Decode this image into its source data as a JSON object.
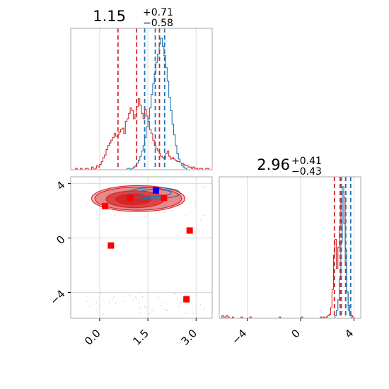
{
  "chart_data": [
    {
      "panel": "marginal-1",
      "type": "histogram",
      "title": {
        "value": "1.15",
        "upper": "+0.71",
        "lower": "−0.58"
      },
      "xlim": [
        -0.9,
        3.5
      ],
      "grid": true,
      "series": [
        {
          "name": "",
          "color": "#d62728",
          "quantile_lines": [
            0.57,
            1.15,
            1.86
          ],
          "values": [
            0,
            0,
            0,
            1,
            0,
            0,
            1,
            0,
            0,
            1,
            1,
            0,
            0,
            2,
            0,
            1,
            3,
            2,
            4,
            6,
            9,
            11,
            15,
            18,
            20,
            22,
            24,
            27,
            25,
            26,
            28,
            30,
            31,
            27,
            36,
            38,
            42,
            46,
            44,
            38,
            41,
            47,
            53,
            48,
            42,
            38,
            45,
            40,
            36,
            30,
            27,
            22,
            18,
            16,
            14,
            12,
            10,
            9,
            8,
            12,
            14,
            10,
            8,
            9,
            8,
            7,
            6,
            6,
            5,
            5,
            4,
            3,
            3,
            2,
            2,
            1,
            2,
            1,
            1,
            0,
            1,
            1,
            0,
            0,
            1,
            1,
            0,
            0
          ],
          "bin_start": -0.9,
          "bin_width": 0.05
        },
        {
          "name": "",
          "color": "#1f77b4",
          "quantile_lines": [
            1.4,
            1.73,
            2.02
          ],
          "values": [
            0,
            0,
            0,
            0,
            0,
            0,
            0,
            0,
            0,
            0,
            0,
            0,
            0,
            0,
            0,
            0,
            0,
            0,
            0,
            0,
            0,
            0,
            0,
            0,
            0,
            0,
            0,
            0,
            0,
            0,
            0,
            0,
            0,
            0,
            0,
            1,
            1,
            0,
            1,
            2,
            3,
            5,
            7,
            10,
            14,
            18,
            24,
            32,
            38,
            46,
            56,
            64,
            72,
            80,
            86,
            94,
            98,
            92,
            85,
            76,
            66,
            54,
            44,
            34,
            26,
            18,
            12,
            8,
            5,
            3,
            2,
            1,
            0,
            0,
            0,
            0,
            0,
            0,
            0,
            0,
            0,
            0,
            0,
            0,
            0,
            0,
            0,
            0
          ],
          "bin_start": -0.9,
          "bin_width": 0.05
        }
      ]
    },
    {
      "panel": "marginal-2",
      "type": "histogram",
      "title": {
        "value": "2.96",
        "upper": "+0.41",
        "lower": "−0.43"
      },
      "xlim": [
        -6.1,
        4.5
      ],
      "xticks": [
        "−4",
        "0",
        "4"
      ],
      "xtick_values": [
        -4,
        0,
        4
      ],
      "grid": true,
      "series": [
        {
          "name": "",
          "color": "#d62728",
          "quantile_lines": [
            2.53,
            2.96,
            3.37
          ],
          "values": [
            2,
            1,
            1,
            2,
            1,
            0,
            0,
            1,
            0,
            0,
            0,
            0,
            0,
            1,
            0,
            0,
            0,
            0,
            0,
            1,
            0,
            0,
            0,
            0,
            0,
            0,
            0,
            0,
            0,
            0,
            0,
            0,
            0,
            0,
            0,
            0,
            0,
            0,
            0,
            1,
            0,
            0,
            0,
            0,
            0,
            0,
            0,
            0,
            0,
            0,
            0,
            0,
            0,
            0,
            1,
            0,
            0,
            0,
            0,
            0,
            0,
            0,
            0,
            0,
            0,
            0,
            0,
            1,
            0,
            1,
            0,
            1,
            2,
            3,
            8,
            22,
            48,
            60,
            38,
            54,
            70,
            88,
            96,
            72,
            40,
            20,
            10,
            4,
            2,
            1
          ],
          "bin_start": -5.9,
          "bin_width": 0.11
        },
        {
          "name": "",
          "color": "#1f77b4",
          "quantile_lines": [
            3.05,
            3.38,
            3.75
          ],
          "values": [
            0,
            0,
            0,
            0,
            0,
            0,
            0,
            0,
            0,
            0,
            0,
            0,
            0,
            0,
            0,
            0,
            0,
            0,
            0,
            0,
            0,
            0,
            0,
            0,
            0,
            0,
            0,
            0,
            0,
            0,
            0,
            0,
            0,
            0,
            0,
            0,
            0,
            0,
            0,
            0,
            0,
            0,
            0,
            0,
            0,
            0,
            0,
            0,
            0,
            0,
            0,
            0,
            0,
            0,
            0,
            0,
            0,
            0,
            0,
            0,
            0,
            0,
            0,
            0,
            0,
            0,
            0,
            0,
            0,
            0,
            0,
            0,
            0,
            0,
            0,
            0,
            0,
            2,
            6,
            14,
            30,
            58,
            100,
            92,
            52,
            20,
            6,
            2,
            0,
            0
          ],
          "bin_start": -5.9,
          "bin_width": 0.11
        }
      ]
    },
    {
      "panel": "joint",
      "type": "scatter",
      "xlim": [
        -0.9,
        3.5
      ],
      "ylim": [
        -5.9,
        4.5
      ],
      "xticks": [
        "0.0",
        "1.5",
        "3.0"
      ],
      "xtick_values": [
        0.0,
        1.5,
        3.0
      ],
      "yticks": [
        "−4",
        "0",
        "4"
      ],
      "ytick_values": [
        -4,
        0,
        4
      ],
      "grid": true,
      "series": [
        {
          "name": "",
          "color": "#d62728",
          "marker": "filled-contours",
          "contours": [
            {
              "cx": 1.2,
              "cy": 2.9,
              "rx": 1.45,
              "ry": 0.95,
              "fill": "#f3c4c4"
            },
            {
              "cx": 1.2,
              "cy": 2.9,
              "rx": 1.35,
              "ry": 0.85,
              "fill": "#e9888a"
            },
            {
              "cx": 1.1,
              "cy": 2.85,
              "rx": 0.9,
              "ry": 0.62,
              "fill": "#dc4446"
            },
            {
              "cx": 1.05,
              "cy": 2.85,
              "rx": 0.55,
              "ry": 0.4,
              "fill": "#d62728"
            }
          ]
        },
        {
          "name": "",
          "color": "#1f77b4",
          "marker": "contour-lines",
          "contours": [
            {
              "cx": 1.7,
              "cy": 3.3,
              "rx": 0.8,
              "ry": 0.42
            },
            {
              "cx": 1.72,
              "cy": 3.32,
              "rx": 0.5,
              "ry": 0.26
            }
          ]
        },
        {
          "name": "",
          "color": "#ff0000",
          "marker": "square",
          "points": [
            [
              0.17,
              2.35
            ],
            [
              0.95,
              2.95
            ],
            [
              2.0,
              2.95
            ],
            [
              2.8,
              0.55
            ],
            [
              0.35,
              -0.55
            ],
            [
              2.7,
              -4.5
            ]
          ]
        },
        {
          "name": "",
          "color": "#0000ff",
          "marker": "square",
          "points": [
            [
              1.75,
              3.5
            ]
          ]
        }
      ]
    }
  ]
}
